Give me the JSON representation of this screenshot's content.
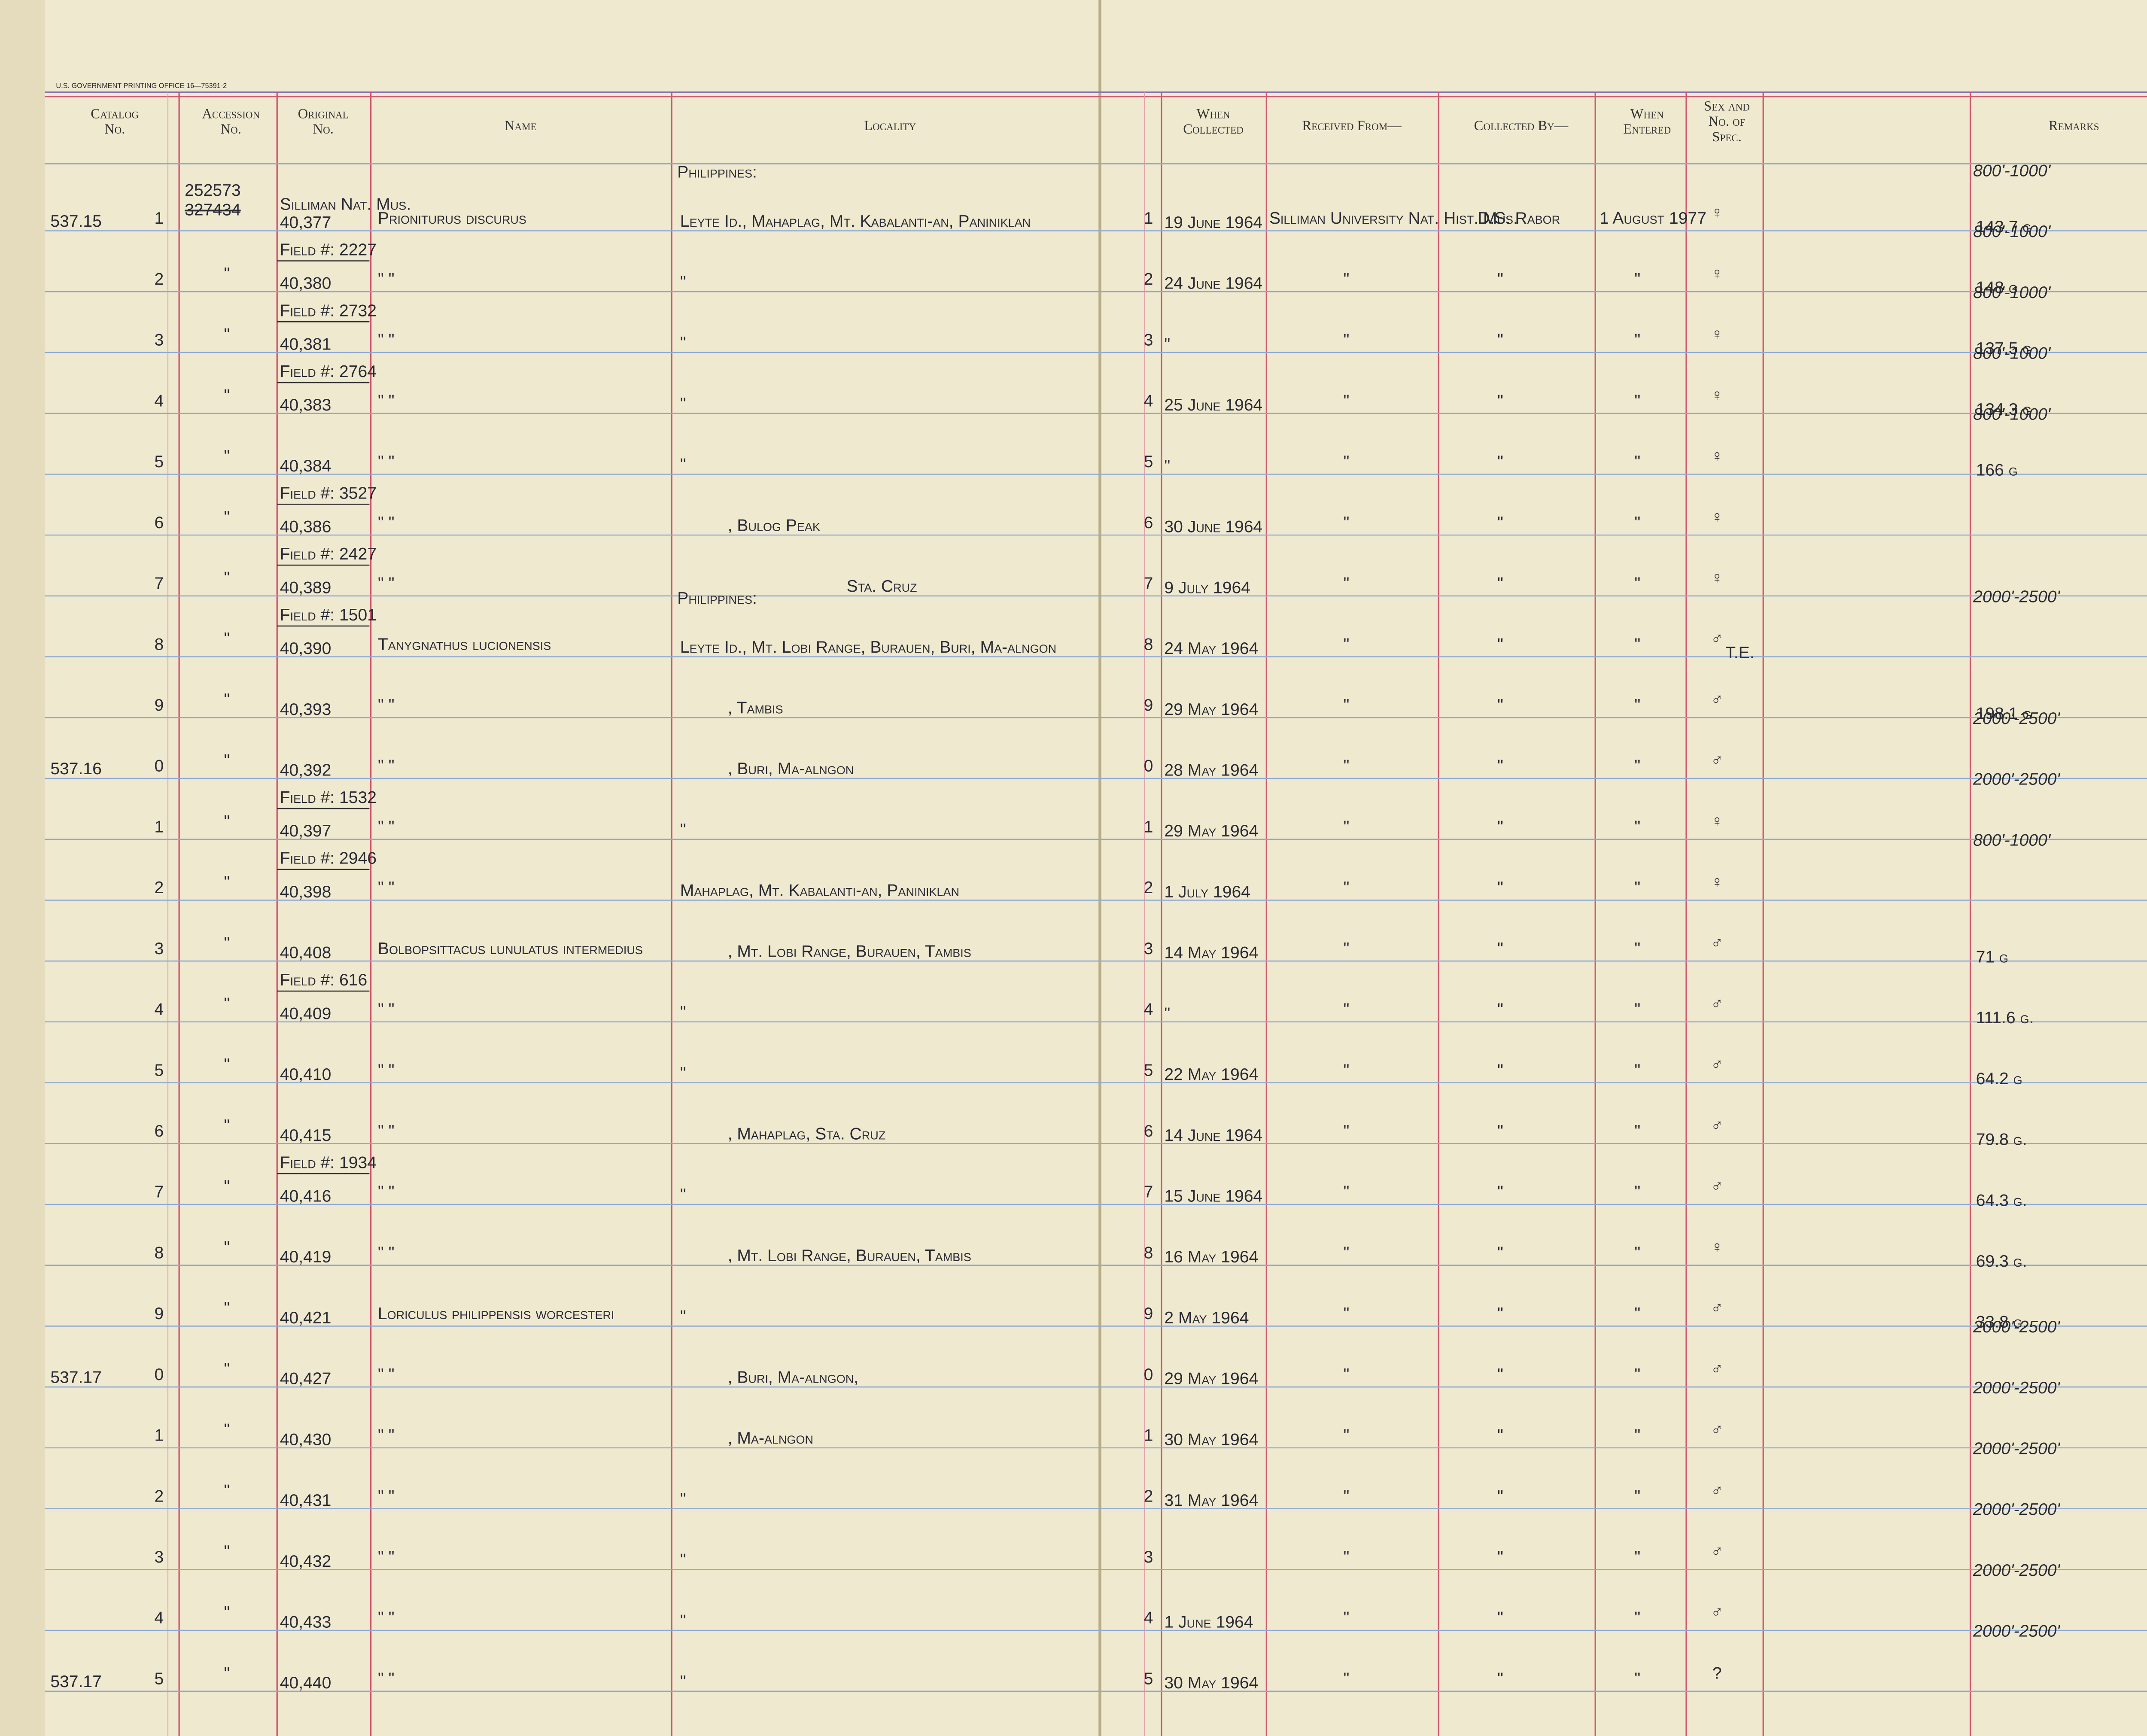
{
  "printer": "U.S. GOVERNMENT PRINTING OFFICE 16—75391-2",
  "header": {
    "catalog": [
      "Catalog",
      "No."
    ],
    "accession": [
      "Accession",
      "No."
    ],
    "original": [
      "Original",
      "No."
    ],
    "name": "Name",
    "locality": "Locality",
    "collected": [
      "When",
      "Collected"
    ],
    "received": "Received From—",
    "collected_by": "Collected By—",
    "entered": [
      "When",
      "Entered"
    ],
    "sex": [
      "Sex and",
      "No. of",
      "Spec."
    ],
    "remarks": "Remarks"
  },
  "rows": [
    {
      "line": "1",
      "catalog": "537.15",
      "accession": "252573",
      "accession_struck": "327434",
      "original_note": "Silliman Nat. Mus.",
      "original": "40,377",
      "name": "Prioniturus discurus",
      "locality_header": "Philippines:",
      "locality": "Leyte Id., Mahaplag, Mt. Kabalanti-an, Paniniklan",
      "collected": "19 June 1964",
      "received": "Silliman University Nat. Hist. Mus.",
      "collected_by": "D.S. Rabor",
      "entered": "1 August 1977",
      "sex": "♀",
      "elevation": "800'-1000'",
      "weight": "143.7 g"
    },
    {
      "line": "2",
      "accession": "\"",
      "field": "Field #: 2227",
      "original": "40,380",
      "name": "\"      \"",
      "locality": "\"",
      "collected": "24 June 1964",
      "received": "\"",
      "collected_by": "\"",
      "entered": "\"",
      "sex": "♀",
      "elevation": "800'-1000'",
      "weight": "148 g"
    },
    {
      "line": "3",
      "accession": "\"",
      "field": "Field #: 2732",
      "original": "40,381",
      "name": "\"      \"",
      "locality": "\"",
      "collected": "\"",
      "received": "\"",
      "collected_by": "\"",
      "entered": "\"",
      "sex": "♀",
      "elevation": "800'-1000'",
      "weight": "137.5 g"
    },
    {
      "line": "4",
      "accession": "\"",
      "field": "Field #: 2764",
      "original": "40,383",
      "name": "\"      \"",
      "locality": "\"",
      "collected": "25 June 1964",
      "received": "\"",
      "collected_by": "\"",
      "entered": "\"",
      "sex": "♀",
      "elevation": "800'-1000'",
      "weight": "134.3 g"
    },
    {
      "line": "5",
      "accession": "\"",
      "original": "40,384",
      "name": "\"      \"",
      "locality": "\"",
      "collected": "\"",
      "received": "\"",
      "collected_by": "\"",
      "entered": "\"",
      "sex": "♀",
      "elevation": "800'-1000'",
      "weight": "166 g"
    },
    {
      "line": "6",
      "accession": "\"",
      "field": "Field #: 3527",
      "original": "40,386",
      "name": "\"      \"",
      "locality": ", Bulog Peak",
      "collected": "30 June 1964",
      "received": "\"",
      "collected_by": "\"",
      "entered": "\"",
      "sex": "♀"
    },
    {
      "line": "7",
      "accession": "\"",
      "field": "Field #: 2427",
      "original": "40,389",
      "name": "\"      \"",
      "locality": "Sta. Cruz",
      "collected": "9 July 1964",
      "received": "\"",
      "collected_by": "\"",
      "entered": "\"",
      "sex": "♀"
    },
    {
      "line": "8",
      "accession": "\"",
      "field": "Field #: 1501",
      "original": "40,390",
      "name": "Tanygnathus lucionensis",
      "locality_header": "Philippines:",
      "locality": "Leyte Id., Mt. Lobi Range, Burauen, Buri, Ma-alngon",
      "collected": "24 May 1964",
      "received": "\"",
      "collected_by": "\"",
      "entered": "\"",
      "sex": "♂",
      "sex_note": "T.E.",
      "elevation": "2000'-2500'"
    },
    {
      "line": "9",
      "accession": "\"",
      "original": "40,393",
      "name": "\"      \"",
      "locality": ", Tambis",
      "collected": "29 May 1964",
      "received": "\"",
      "collected_by": "\"",
      "entered": "\"",
      "sex": "♂",
      "weight": "198.1 g"
    },
    {
      "line": "0",
      "catalog": "537.16",
      "accession": "\"",
      "original": "40,392",
      "name": "\"      \"",
      "locality": ", Buri, Ma-alngon",
      "collected": "28 May 1964",
      "received": "\"",
      "collected_by": "\"",
      "entered": "\"",
      "sex": "♂",
      "elevation": "2000'-2500'"
    },
    {
      "line": "1",
      "accession": "\"",
      "field": "Field #: 1532",
      "original": "40,397",
      "name": "\"      \"",
      "locality": "\"",
      "collected": "29 May 1964",
      "received": "\"",
      "collected_by": "\"",
      "entered": "\"",
      "sex": "♀",
      "elevation": "2000'-2500'"
    },
    {
      "line": "2",
      "accession": "\"",
      "field": "Field #: 2946",
      "original": "40,398",
      "name": "\"      \"",
      "locality": "Mahaplag, Mt. Kabalanti-an, Paniniklan",
      "collected": "1 July 1964",
      "received": "\"",
      "collected_by": "\"",
      "entered": "\"",
      "sex": "♀",
      "elevation": "800'-1000'"
    },
    {
      "line": "3",
      "accession": "\"",
      "original": "40,408",
      "name": "Bolbopsittacus lunulatus intermedius",
      "locality": ", Mt. Lobi Range, Burauen, Tambis",
      "collected": "14 May 1964",
      "received": "\"",
      "collected_by": "\"",
      "entered": "\"",
      "sex": "♂",
      "weight": "71 g"
    },
    {
      "line": "4",
      "accession": "\"",
      "field": "Field #: 616",
      "original": "40,409",
      "name": "\"      \"",
      "locality": "\"",
      "collected": "\"",
      "received": "\"",
      "collected_by": "\"",
      "entered": "\"",
      "sex": "♂",
      "weight": "111.6 g."
    },
    {
      "line": "5",
      "accession": "\"",
      "original": "40,410",
      "name": "\"      \"",
      "locality": "\"",
      "collected": "22 May 1964",
      "received": "\"",
      "collected_by": "\"",
      "entered": "\"",
      "sex": "♂",
      "weight": "64.2 g"
    },
    {
      "line": "6",
      "accession": "\"",
      "original": "40,415",
      "name": "\"      \"",
      "locality": ", Mahaplag, Sta. Cruz",
      "collected": "14 June 1964",
      "received": "\"",
      "collected_by": "\"",
      "entered": "\"",
      "sex": "♂",
      "weight": "79.8 g."
    },
    {
      "line": "7",
      "accession": "\"",
      "field": "Field #: 1934",
      "original": "40,416",
      "name": "\"      \"",
      "locality": "\"",
      "collected": "15 June 1964",
      "received": "\"",
      "collected_by": "\"",
      "entered": "\"",
      "sex": "♂",
      "weight": "64.3 g."
    },
    {
      "line": "8",
      "accession": "\"",
      "original": "40,419",
      "name": "\"      \"",
      "locality": ", Mt. Lobi Range, Burauen, Tambis",
      "collected": "16 May 1964",
      "received": "\"",
      "collected_by": "\"",
      "entered": "\"",
      "sex": "♀",
      "weight": "69.3 g."
    },
    {
      "line": "9",
      "accession": "\"",
      "original": "40,421",
      "name": "Loriculus philippensis worcesteri",
      "locality": "\"",
      "collected": "2 May 1964",
      "received": "\"",
      "collected_by": "\"",
      "entered": "\"",
      "sex": "♂",
      "weight": "33.8 g."
    },
    {
      "line": "0",
      "catalog": "537.17",
      "accession": "\"",
      "original": "40,427",
      "name": "\"      \"",
      "locality": ", Buri, Ma-alngon,",
      "collected": "29 May 1964",
      "received": "\"",
      "collected_by": "\"",
      "entered": "\"",
      "sex": "♂",
      "elevation": "2000'-2500'"
    },
    {
      "line": "1",
      "accession": "\"",
      "original": "40,430",
      "name": "\"      \"",
      "locality": ", Ma-alngon",
      "collected": "30 May 1964",
      "received": "\"",
      "collected_by": "\"",
      "entered": "\"",
      "sex": "♂",
      "elevation": "2000'-2500'"
    },
    {
      "line": "2",
      "accession": "\"",
      "original": "40,431",
      "name": "\"      \"",
      "locality": "\"",
      "collected": "31 May 1964",
      "received": "\"",
      "collected_by": "\"",
      "entered": "\"",
      "sex": "♂",
      "elevation": "2000'-2500'"
    },
    {
      "line": "3",
      "accession": "\"",
      "original": "40,432",
      "name": "\"      \"",
      "locality": "\"",
      "received": "\"",
      "collected_by": "\"",
      "entered": "\"",
      "sex": "♂",
      "elevation": "2000'-2500'"
    },
    {
      "line": "4",
      "accession": "\"",
      "original": "40,433",
      "name": "\"      \"",
      "locality": "\"",
      "collected": "1 June 1964",
      "received": "\"",
      "collected_by": "\"",
      "entered": "\"",
      "sex": "♂",
      "elevation": "2000'-2500'"
    },
    {
      "line": "5",
      "catalog": "537.17",
      "accession": "\"",
      "original": "40,440",
      "name": "\"      \"",
      "locality": "\"",
      "collected": "30 May 1964",
      "received": "\"",
      "collected_by": "\"",
      "entered": "\"",
      "sex": "?",
      "elevation": "2000'-2500'"
    }
  ]
}
